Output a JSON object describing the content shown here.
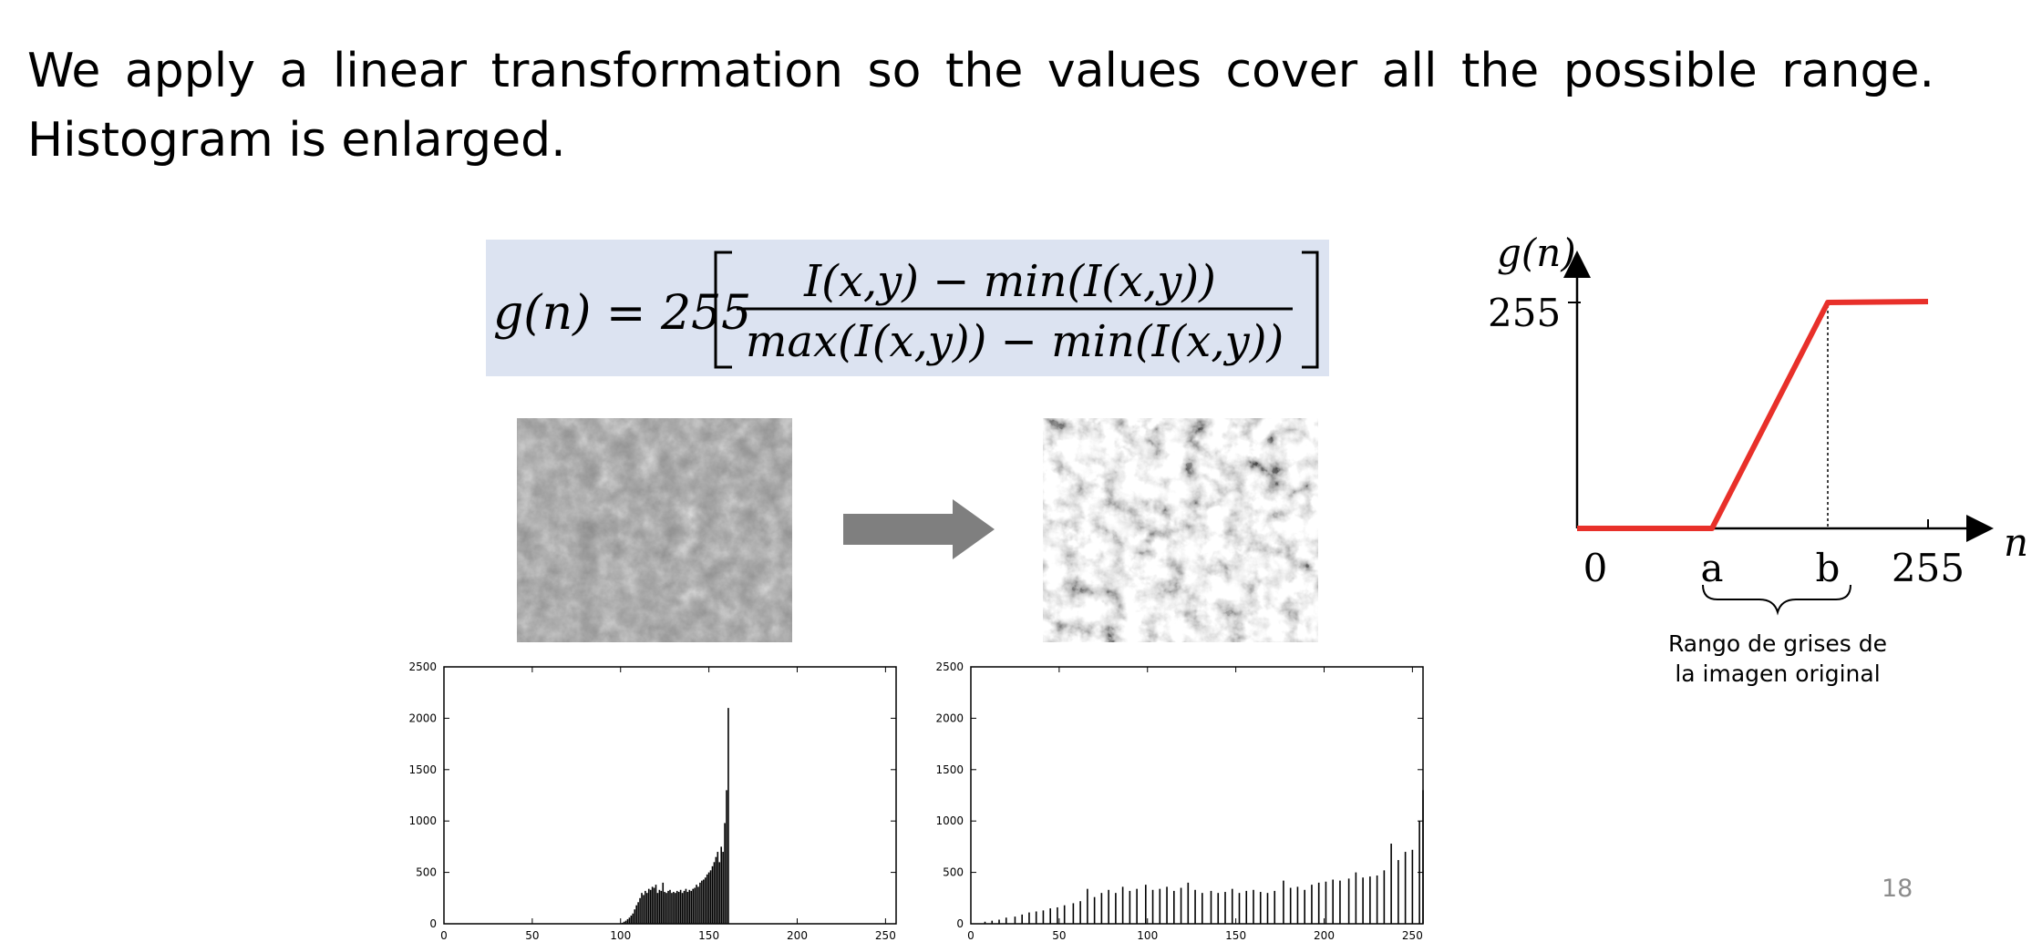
{
  "slide": {
    "text_line1": "We apply a linear transformation so the values cover all the possible range.",
    "text_line2": "Histogram is enlarged.",
    "page_number": "18"
  },
  "formula": {
    "lhs": "g(n) = 255",
    "numerator": "I(x,y) − min(I(x,y))",
    "denominator": "max(I(x,y)) − min(I(x,y))"
  },
  "images": {
    "original": "low-contrast-micrograph",
    "stretched": "high-contrast-micrograph",
    "arrow": "right-arrow-icon"
  },
  "transfer_chart": {
    "ylabel": "g(n)",
    "xlabel": "n",
    "y_tick": "255",
    "x_ticks": [
      "0",
      "a",
      "b",
      "255"
    ],
    "brace_caption_line1": "Rango de grises de",
    "brace_caption_line2": "la imagen original",
    "line_color": "#e8302a"
  },
  "chart_data": [
    {
      "type": "bar",
      "x_ticks": [
        "0",
        "50",
        "100",
        "150",
        "200",
        "250"
      ],
      "y_ticks": [
        "0",
        "500",
        "1000",
        "1500",
        "2000",
        "2500"
      ],
      "xlim": [
        0,
        256
      ],
      "ylim": [
        0,
        2500
      ],
      "x": [
        101,
        102,
        103,
        104,
        105,
        106,
        107,
        108,
        109,
        110,
        111,
        112,
        113,
        114,
        115,
        116,
        117,
        118,
        119,
        120,
        121,
        122,
        123,
        124,
        125,
        126,
        127,
        128,
        129,
        130,
        131,
        132,
        133,
        134,
        135,
        136,
        137,
        138,
        139,
        140,
        141,
        142,
        143,
        144,
        145,
        146,
        147,
        148,
        149,
        150,
        151,
        152,
        153,
        154,
        155,
        156,
        157,
        158,
        159,
        160,
        161,
        162
      ],
      "values": [
        10,
        20,
        30,
        45,
        60,
        80,
        100,
        140,
        180,
        210,
        250,
        300,
        280,
        320,
        300,
        340,
        330,
        360,
        350,
        380,
        300,
        330,
        320,
        400,
        310,
        300,
        320,
        330,
        300,
        310,
        300,
        320,
        310,
        330,
        300,
        320,
        340,
        310,
        330,
        320,
        340,
        350,
        380,
        360,
        400,
        420,
        430,
        450,
        480,
        500,
        520,
        560,
        600,
        650,
        700,
        600,
        750,
        700,
        980,
        1300,
        2100,
        0
      ]
    },
    {
      "type": "bar",
      "x_ticks": [
        "0",
        "50",
        "100",
        "150",
        "200",
        "250"
      ],
      "y_ticks": [
        "0",
        "500",
        "1000",
        "1500",
        "2000",
        "2500"
      ],
      "xlim": [
        0,
        256
      ],
      "ylim": [
        0,
        2500
      ],
      "x": [
        8,
        12,
        16,
        20,
        25,
        29,
        33,
        37,
        41,
        45,
        49,
        53,
        58,
        62,
        66,
        70,
        74,
        78,
        82,
        86,
        90,
        94,
        99,
        103,
        107,
        111,
        115,
        119,
        123,
        127,
        131,
        136,
        140,
        144,
        148,
        152,
        156,
        160,
        164,
        168,
        172,
        177,
        181,
        185,
        189,
        193,
        197,
        201,
        205,
        209,
        214,
        218,
        222,
        226,
        230,
        234,
        238,
        242,
        246,
        250,
        254,
        256
      ],
      "values": [
        20,
        30,
        40,
        60,
        70,
        90,
        110,
        120,
        130,
        150,
        160,
        180,
        200,
        220,
        340,
        260,
        300,
        330,
        300,
        360,
        320,
        340,
        380,
        330,
        340,
        360,
        320,
        350,
        400,
        330,
        300,
        320,
        300,
        310,
        340,
        300,
        320,
        330,
        310,
        300,
        320,
        420,
        350,
        360,
        330,
        380,
        400,
        410,
        430,
        420,
        440,
        500,
        450,
        460,
        470,
        520,
        780,
        620,
        700,
        720,
        1000,
        1300
      ]
    }
  ]
}
